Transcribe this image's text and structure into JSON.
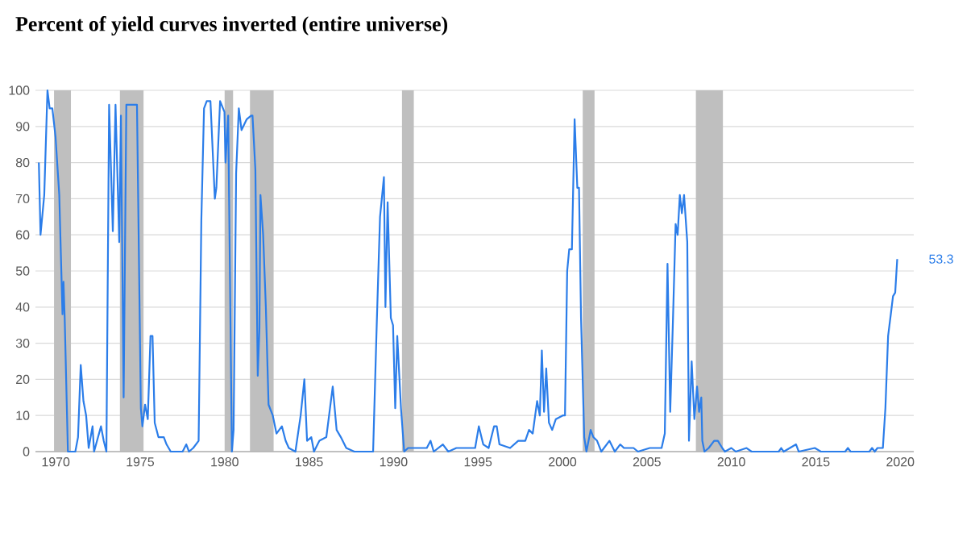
{
  "chart_data": {
    "type": "line",
    "title": "Percent of yield curves inverted (entire universe)",
    "xlim": [
      1968.8,
      2020.8
    ],
    "xticks": [
      1970,
      1975,
      1980,
      1985,
      1990,
      1995,
      2000,
      2005,
      2010,
      2015,
      2020
    ],
    "ylim": [
      0,
      100
    ],
    "yticks": [
      0,
      10,
      20,
      30,
      40,
      50,
      60,
      70,
      80,
      90,
      100
    ],
    "grid": "y",
    "bands": [
      {
        "axis": "x",
        "from": 1969.9,
        "to": 1970.9,
        "color": "#bfbfbf"
      },
      {
        "axis": "x",
        "from": 1973.8,
        "to": 1975.2,
        "color": "#bfbfbf"
      },
      {
        "axis": "x",
        "from": 1980.0,
        "to": 1980.5,
        "color": "#bfbfbf"
      },
      {
        "axis": "x",
        "from": 1981.5,
        "to": 1982.9,
        "color": "#bfbfbf"
      },
      {
        "axis": "x",
        "from": 1990.5,
        "to": 1991.2,
        "color": "#bfbfbf"
      },
      {
        "axis": "x",
        "from": 2001.2,
        "to": 2001.9,
        "color": "#bfbfbf"
      },
      {
        "axis": "x",
        "from": 2007.9,
        "to": 2009.5,
        "color": "#bfbfbf"
      }
    ],
    "annotations": [
      {
        "text": "53.3",
        "x": 2019.82,
        "y": 53.3
      }
    ],
    "series": [
      {
        "color": "#2b7de9",
        "x": [
          1969.0,
          1969.1,
          1969.32,
          1969.51,
          1969.64,
          1969.8,
          1969.99,
          1970.21,
          1970.4,
          1970.46,
          1970.53,
          1970.72,
          1971.16,
          1971.32,
          1971.48,
          1971.64,
          1971.8,
          1971.95,
          1972.18,
          1972.27,
          1972.68,
          1972.84,
          1973.0,
          1973.16,
          1973.38,
          1973.54,
          1973.76,
          1973.86,
          1974.02,
          1974.18,
          1974.81,
          1975.04,
          1975.13,
          1975.29,
          1975.45,
          1975.61,
          1975.73,
          1975.86,
          1976.08,
          1976.4,
          1976.56,
          1976.81,
          1977.51,
          1977.73,
          1977.89,
          1978.14,
          1978.46,
          1978.62,
          1978.78,
          1978.94,
          1979.16,
          1979.42,
          1979.51,
          1979.73,
          1979.99,
          1980.05,
          1980.21,
          1980.43,
          1980.53,
          1980.68,
          1980.84,
          1981.0,
          1981.31,
          1981.57,
          1981.65,
          1981.82,
          1981.96,
          1982.06,
          1982.12,
          1982.28,
          1982.44,
          1982.6,
          1982.85,
          1983.07,
          1983.39,
          1983.61,
          1983.8,
          1984.19,
          1984.5,
          1984.72,
          1984.88,
          1985.13,
          1985.29,
          1985.61,
          1986.02,
          1986.4,
          1986.63,
          1986.88,
          1987.2,
          1987.68,
          1988.79,
          1989.01,
          1989.2,
          1989.43,
          1989.52,
          1989.65,
          1989.84,
          1989.97,
          1990.1,
          1990.22,
          1990.44,
          1990.63,
          1990.86,
          1991.49,
          1991.97,
          1992.19,
          1992.38,
          1992.92,
          1993.24,
          1993.72,
          1994.83,
          1995.05,
          1995.31,
          1995.63,
          1995.95,
          1996.11,
          1996.27,
          1996.9,
          1997.38,
          1997.8,
          1998.02,
          1998.24,
          1998.5,
          1998.66,
          1998.78,
          1998.91,
          1999.04,
          1999.2,
          1999.39,
          1999.61,
          2000.02,
          2000.15,
          2000.28,
          2000.4,
          2000.56,
          2000.72,
          2000.88,
          2000.98,
          2001.1,
          2001.29,
          2001.42,
          2001.67,
          2001.83,
          2002.05,
          2002.3,
          2002.78,
          2003.1,
          2003.42,
          2003.64,
          2004.21,
          2004.47,
          2005.17,
          2005.87,
          2006.06,
          2006.22,
          2006.38,
          2006.54,
          2006.7,
          2006.82,
          2006.95,
          2007.07,
          2007.2,
          2007.39,
          2007.49,
          2007.65,
          2007.81,
          2007.97,
          2008.09,
          2008.22,
          2008.28,
          2008.41,
          2008.66,
          2008.98,
          2009.2,
          2009.46,
          2009.62,
          2010.0,
          2010.26,
          2010.9,
          2011.2,
          2012.8,
          2012.95,
          2013.1,
          2013.83,
          2013.99,
          2014.94,
          2015.3,
          2016.74,
          2016.9,
          2017.06,
          2018.17,
          2018.33,
          2018.49,
          2018.65,
          2018.97,
          2019.12,
          2019.28,
          2019.44,
          2019.57,
          2019.7,
          2019.82
        ],
        "values": [
          80,
          60,
          71,
          100,
          95,
          95,
          87,
          71,
          38,
          47,
          37,
          0,
          0,
          4,
          24,
          14,
          10,
          1,
          7,
          0,
          7,
          3,
          0,
          96,
          61,
          96,
          58,
          93,
          15,
          96,
          96,
          12,
          7,
          13,
          9,
          32,
          32,
          8,
          4,
          4,
          2,
          0,
          0,
          2,
          0,
          1,
          3,
          64,
          95,
          97,
          97,
          70,
          73,
          97,
          94,
          80,
          93,
          0,
          6,
          77,
          95,
          89,
          92,
          93,
          93,
          78,
          21,
          34,
          71,
          60,
          40,
          13,
          10,
          5,
          7,
          3,
          1,
          0,
          10,
          20,
          3,
          4,
          0,
          3,
          4,
          18,
          6,
          4,
          1,
          0,
          0,
          36,
          65,
          76,
          40,
          69,
          37,
          35,
          12,
          32,
          12,
          0,
          1,
          1,
          1,
          3,
          0,
          2,
          0,
          1,
          1,
          7,
          2,
          1,
          7,
          7,
          2,
          1,
          3,
          3,
          6,
          5,
          14,
          10,
          28,
          11,
          23,
          8,
          6,
          9,
          10,
          10,
          50,
          56,
          56,
          92,
          73,
          73,
          37,
          4,
          0,
          6,
          4,
          3,
          0,
          3,
          0,
          2,
          1,
          1,
          0,
          1,
          1,
          5,
          52,
          11,
          36,
          63,
          60,
          71,
          66,
          71,
          58,
          3,
          25,
          9,
          18,
          11,
          15,
          3,
          0,
          1,
          3,
          3,
          1,
          0,
          1,
          0,
          1,
          0,
          0,
          1,
          0,
          2,
          0,
          1,
          0,
          0,
          1,
          0,
          0,
          1,
          0,
          1,
          1,
          12,
          32,
          38,
          43,
          44,
          53.3
        ]
      }
    ]
  }
}
